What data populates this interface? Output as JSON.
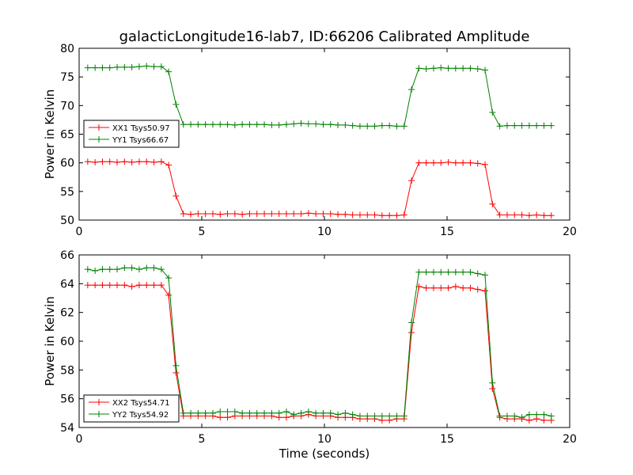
{
  "title": "galacticLongitude16-lab7, ID:66206 Calibrated Amplitude",
  "chart_data": [
    {
      "type": "line",
      "ylabel": "Power in Kelvin",
      "xlabel": "",
      "xlim": [
        0,
        20
      ],
      "ylim": [
        50,
        80
      ],
      "xticks": [
        "0",
        "5",
        "10",
        "15",
        "20"
      ],
      "yticks": [
        "50",
        "55",
        "60",
        "65",
        "70",
        "75",
        "80"
      ],
      "legend_position": "left",
      "series": [
        {
          "name": "XX1 Tsys50.97",
          "color": "#ff0000",
          "x": [
            0.35,
            0.65,
            0.95,
            1.25,
            1.55,
            1.85,
            2.15,
            2.45,
            2.75,
            3.05,
            3.35,
            3.65,
            3.95,
            4.25,
            4.55,
            4.85,
            5.15,
            5.45,
            5.75,
            6.05,
            6.35,
            6.65,
            6.95,
            7.25,
            7.55,
            7.85,
            8.15,
            8.45,
            8.75,
            9.05,
            9.35,
            9.65,
            9.95,
            10.25,
            10.55,
            10.85,
            11.15,
            11.45,
            11.75,
            12.05,
            12.35,
            12.65,
            12.95,
            13.25,
            13.55,
            13.85,
            14.15,
            14.45,
            14.75,
            15.05,
            15.35,
            15.65,
            15.95,
            16.25,
            16.55,
            16.85,
            17.15,
            17.45,
            17.75,
            18.05,
            18.35,
            18.65,
            18.95,
            19.25
          ],
          "values": [
            60.2,
            60.1,
            60.2,
            60.2,
            60.1,
            60.2,
            60.1,
            60.2,
            60.2,
            60.1,
            60.2,
            59.6,
            54.2,
            51.1,
            51.0,
            51.1,
            51.1,
            51.1,
            51.0,
            51.1,
            51.1,
            51.0,
            51.1,
            51.1,
            51.1,
            51.1,
            51.1,
            51.1,
            51.1,
            51.1,
            51.2,
            51.1,
            51.1,
            51.1,
            51.0,
            51.0,
            50.9,
            50.9,
            50.9,
            50.9,
            50.8,
            50.8,
            50.8,
            50.9,
            56.9,
            60.0,
            60.0,
            60.0,
            60.0,
            60.1,
            60.0,
            60.0,
            60.0,
            59.9,
            59.7,
            52.8,
            50.9,
            50.9,
            50.9,
            50.9,
            50.8,
            50.9,
            50.8,
            50.8
          ]
        },
        {
          "name": "YY1 Tsys66.67",
          "color": "#008000",
          "x": [
            0.35,
            0.65,
            0.95,
            1.25,
            1.55,
            1.85,
            2.15,
            2.45,
            2.75,
            3.05,
            3.35,
            3.65,
            3.95,
            4.25,
            4.55,
            4.85,
            5.15,
            5.45,
            5.75,
            6.05,
            6.35,
            6.65,
            6.95,
            7.25,
            7.55,
            7.85,
            8.15,
            8.45,
            8.75,
            9.05,
            9.35,
            9.65,
            9.95,
            10.25,
            10.55,
            10.85,
            11.15,
            11.45,
            11.75,
            12.05,
            12.35,
            12.65,
            12.95,
            13.25,
            13.55,
            13.85,
            14.15,
            14.45,
            14.75,
            15.05,
            15.35,
            15.65,
            15.95,
            16.25,
            16.55,
            16.85,
            17.15,
            17.45,
            17.75,
            18.05,
            18.35,
            18.65,
            18.95,
            19.25
          ],
          "values": [
            76.6,
            76.6,
            76.6,
            76.6,
            76.7,
            76.7,
            76.7,
            76.8,
            76.9,
            76.8,
            76.8,
            75.9,
            70.2,
            66.7,
            66.7,
            66.7,
            66.7,
            66.7,
            66.7,
            66.7,
            66.6,
            66.7,
            66.7,
            66.7,
            66.7,
            66.6,
            66.6,
            66.7,
            66.8,
            66.9,
            66.8,
            66.8,
            66.7,
            66.7,
            66.6,
            66.6,
            66.5,
            66.4,
            66.4,
            66.4,
            66.5,
            66.5,
            66.4,
            66.4,
            72.8,
            76.5,
            76.4,
            76.5,
            76.6,
            76.5,
            76.5,
            76.5,
            76.5,
            76.4,
            76.2,
            68.8,
            66.4,
            66.5,
            66.5,
            66.5,
            66.5,
            66.5,
            66.5,
            66.5
          ]
        }
      ]
    },
    {
      "type": "line",
      "ylabel": "Power in Kelvin",
      "xlabel": "Time (seconds)",
      "xlim": [
        0,
        20
      ],
      "ylim": [
        54,
        66
      ],
      "xticks": [
        "0",
        "5",
        "10",
        "15",
        "20"
      ],
      "yticks": [
        "54",
        "56",
        "58",
        "60",
        "62",
        "64",
        "66"
      ],
      "legend_position": "lower left",
      "series": [
        {
          "name": "XX2 Tsys54.71",
          "color": "#ff0000",
          "x": [
            0.35,
            0.65,
            0.95,
            1.25,
            1.55,
            1.85,
            2.15,
            2.45,
            2.75,
            3.05,
            3.35,
            3.65,
            3.95,
            4.25,
            4.55,
            4.85,
            5.15,
            5.45,
            5.75,
            6.05,
            6.35,
            6.65,
            6.95,
            7.25,
            7.55,
            7.85,
            8.15,
            8.45,
            8.75,
            9.05,
            9.35,
            9.65,
            9.95,
            10.25,
            10.55,
            10.85,
            11.15,
            11.45,
            11.75,
            12.05,
            12.35,
            12.65,
            12.95,
            13.25,
            13.55,
            13.85,
            14.15,
            14.45,
            14.75,
            15.05,
            15.35,
            15.65,
            15.95,
            16.25,
            16.55,
            16.85,
            17.15,
            17.45,
            17.75,
            18.05,
            18.35,
            18.65,
            18.95,
            19.25
          ],
          "values": [
            63.9,
            63.9,
            63.9,
            63.9,
            63.9,
            63.9,
            63.8,
            63.9,
            63.9,
            63.9,
            63.9,
            63.2,
            57.8,
            54.8,
            54.8,
            54.8,
            54.8,
            54.8,
            54.7,
            54.7,
            54.8,
            54.8,
            54.8,
            54.8,
            54.8,
            54.8,
            54.7,
            54.7,
            54.8,
            54.8,
            54.9,
            54.8,
            54.8,
            54.8,
            54.7,
            54.7,
            54.7,
            54.6,
            54.6,
            54.6,
            54.5,
            54.5,
            54.6,
            54.6,
            60.6,
            63.8,
            63.7,
            63.7,
            63.7,
            63.7,
            63.8,
            63.7,
            63.7,
            63.6,
            63.5,
            56.7,
            54.7,
            54.6,
            54.6,
            54.6,
            54.5,
            54.6,
            54.5,
            54.5
          ]
        },
        {
          "name": "YY2 Tsys54.92",
          "color": "#008000",
          "x": [
            0.35,
            0.65,
            0.95,
            1.25,
            1.55,
            1.85,
            2.15,
            2.45,
            2.75,
            3.05,
            3.35,
            3.65,
            3.95,
            4.25,
            4.55,
            4.85,
            5.15,
            5.45,
            5.75,
            6.05,
            6.35,
            6.65,
            6.95,
            7.25,
            7.55,
            7.85,
            8.15,
            8.45,
            8.75,
            9.05,
            9.35,
            9.65,
            9.95,
            10.25,
            10.55,
            10.85,
            11.15,
            11.45,
            11.75,
            12.05,
            12.35,
            12.65,
            12.95,
            13.25,
            13.55,
            13.85,
            14.15,
            14.45,
            14.75,
            15.05,
            15.35,
            15.65,
            15.95,
            16.25,
            16.55,
            16.85,
            17.15,
            17.45,
            17.75,
            18.05,
            18.35,
            18.65,
            18.95,
            19.25
          ],
          "values": [
            65.0,
            64.9,
            65.0,
            65.0,
            65.0,
            65.1,
            65.1,
            65.0,
            65.1,
            65.1,
            65.0,
            64.4,
            58.3,
            55.0,
            55.0,
            55.0,
            55.0,
            55.0,
            55.1,
            55.1,
            55.1,
            55.0,
            55.0,
            55.0,
            55.0,
            55.0,
            55.0,
            55.1,
            54.9,
            55.0,
            55.1,
            55.0,
            55.0,
            55.0,
            54.9,
            55.0,
            54.9,
            54.8,
            54.8,
            54.8,
            54.8,
            54.8,
            54.8,
            54.8,
            61.3,
            64.8,
            64.8,
            64.8,
            64.8,
            64.8,
            64.8,
            64.8,
            64.8,
            64.7,
            64.6,
            57.1,
            54.8,
            54.8,
            54.8,
            54.7,
            54.9,
            54.9,
            54.9,
            54.8
          ]
        }
      ]
    }
  ]
}
